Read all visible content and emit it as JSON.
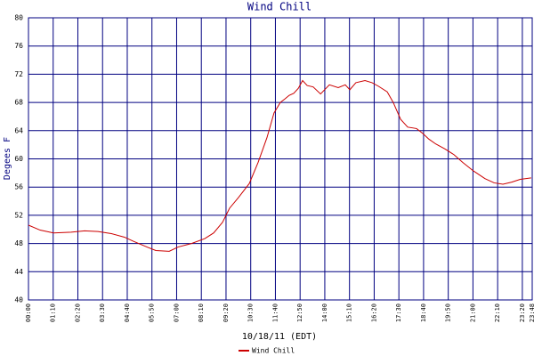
{
  "chart_data": {
    "type": "line",
    "title": "Wind Chill",
    "x_label": "10/18/11 (EDT)",
    "y_label": "Degees F",
    "x": [
      0,
      33,
      71,
      121,
      159,
      197,
      235,
      272,
      298,
      336,
      361,
      399,
      424,
      462,
      500,
      525,
      550,
      570,
      595,
      626,
      651,
      676,
      696,
      714,
      727,
      739,
      752,
      765,
      777,
      790,
      807,
      828,
      853,
      878,
      898,
      911,
      928,
      954,
      974,
      992,
      1017,
      1034,
      1055,
      1075,
      1100,
      1118,
      1135,
      1155,
      1181,
      1206,
      1231,
      1261,
      1294,
      1320,
      1345,
      1370,
      1394,
      1425
    ],
    "series": [
      {
        "name": "Wind Chill",
        "color": "#cc0000",
        "values": [
          50.6,
          49.9,
          49.5,
          49.6,
          49.8,
          49.7,
          49.4,
          48.9,
          48.3,
          47.5,
          47.0,
          46.9,
          47.5,
          48.0,
          48.7,
          49.5,
          51.0,
          53.0,
          54.5,
          56.5,
          59.5,
          63.0,
          66.5,
          68.0,
          68.5,
          69.0,
          69.3,
          70.0,
          71.1,
          70.4,
          70.2,
          69.2,
          70.5,
          70.1,
          70.5,
          69.8,
          70.8,
          71.1,
          70.8,
          70.3,
          69.5,
          68.0,
          65.6,
          64.5,
          64.3,
          63.6,
          62.8,
          62.1,
          61.4,
          60.6,
          59.5,
          58.3,
          57.2,
          56.6,
          56.4,
          56.7,
          57.1,
          57.3
        ]
      }
    ],
    "xlim": [
      0,
      1428
    ],
    "xticks": [
      {
        "value": 0,
        "label": "00:00"
      },
      {
        "value": 70,
        "label": "01:10"
      },
      {
        "value": 140,
        "label": "02:20"
      },
      {
        "value": 210,
        "label": "03:30"
      },
      {
        "value": 280,
        "label": "04:40"
      },
      {
        "value": 350,
        "label": "05:50"
      },
      {
        "value": 420,
        "label": "07:00"
      },
      {
        "value": 490,
        "label": "08:10"
      },
      {
        "value": 560,
        "label": "09:20"
      },
      {
        "value": 630,
        "label": "10:30"
      },
      {
        "value": 700,
        "label": "11:40"
      },
      {
        "value": 770,
        "label": "12:50"
      },
      {
        "value": 840,
        "label": "14:00"
      },
      {
        "value": 910,
        "label": "15:10"
      },
      {
        "value": 980,
        "label": "16:20"
      },
      {
        "value": 1050,
        "label": "17:30"
      },
      {
        "value": 1120,
        "label": "18:40"
      },
      {
        "value": 1190,
        "label": "19:50"
      },
      {
        "value": 1260,
        "label": "21:00"
      },
      {
        "value": 1330,
        "label": "22:10"
      },
      {
        "value": 1400,
        "label": "23:20"
      },
      {
        "value": 1428,
        "label": "23:48"
      }
    ],
    "ylim": [
      40,
      80
    ],
    "yticks": [
      40,
      44,
      48,
      52,
      56,
      60,
      64,
      68,
      72,
      76,
      80
    ],
    "grid": true
  }
}
